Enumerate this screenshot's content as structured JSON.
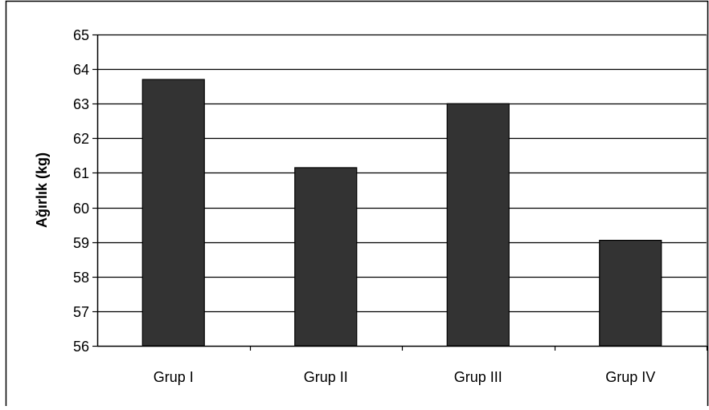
{
  "chart_data": {
    "type": "bar",
    "title": "",
    "xlabel": "",
    "ylabel": "Ağırlık (kg)",
    "categories": [
      "Grup I",
      "Grup II",
      "Grup III",
      "Grup IV"
    ],
    "values": [
      63.7,
      61.15,
      63.0,
      59.05
    ],
    "ylim": [
      56,
      65
    ],
    "yticks": [
      "56",
      "57",
      "58",
      "59",
      "60",
      "61",
      "62",
      "63",
      "64",
      "65"
    ],
    "grid": true,
    "legend": "none",
    "bar_color": "#333333",
    "grid_color": "#000000"
  }
}
